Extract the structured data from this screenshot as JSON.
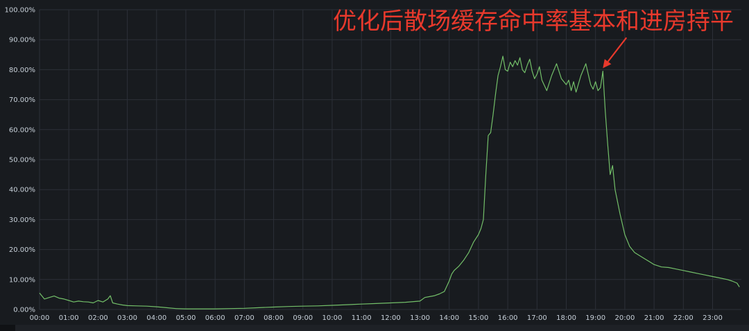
{
  "chart_data": {
    "type": "line",
    "title": "",
    "xlabel": "",
    "ylabel": "",
    "ylim": [
      0,
      100
    ],
    "y_ticks": [
      "0.00%",
      "10.00%",
      "20.00%",
      "30.00%",
      "40.00%",
      "50.00%",
      "60.00%",
      "70.00%",
      "80.00%",
      "90.00%",
      "100.00%"
    ],
    "x_ticks": [
      "00:00",
      "01:00",
      "02:00",
      "03:00",
      "04:00",
      "05:00",
      "06:00",
      "07:00",
      "08:00",
      "09:00",
      "10:00",
      "11:00",
      "12:00",
      "13:00",
      "14:00",
      "15:00",
      "16:00",
      "17:00",
      "18:00",
      "19:00",
      "20:00",
      "21:00",
      "22:00",
      "23:00"
    ],
    "xlim": [
      "00:00",
      "23:59"
    ],
    "grid": true,
    "annotation": {
      "text": "优化后散场缓存命中率基本和进房持平",
      "color": "#e8392c",
      "arrow_target": {
        "x": "19:15",
        "y": 80.5
      }
    },
    "series": [
      {
        "color": "#73bf69",
        "x": [
          "00:00",
          "00:10",
          "00:20",
          "00:30",
          "00:40",
          "00:50",
          "01:00",
          "01:10",
          "01:20",
          "01:30",
          "01:40",
          "01:50",
          "02:00",
          "02:10",
          "02:20",
          "02:25",
          "02:30",
          "02:40",
          "02:50",
          "03:00",
          "03:20",
          "03:40",
          "04:00",
          "04:20",
          "04:40",
          "05:00",
          "05:30",
          "06:00",
          "06:30",
          "07:00",
          "07:30",
          "08:00",
          "08:30",
          "09:00",
          "09:30",
          "10:00",
          "10:30",
          "11:00",
          "11:30",
          "12:00",
          "12:30",
          "13:00",
          "13:10",
          "13:20",
          "13:30",
          "13:40",
          "13:50",
          "14:00",
          "14:05",
          "14:10",
          "14:20",
          "14:30",
          "14:40",
          "14:50",
          "15:00",
          "15:05",
          "15:10",
          "15:15",
          "15:20",
          "15:25",
          "15:30",
          "15:35",
          "15:40",
          "15:45",
          "15:50",
          "15:55",
          "16:00",
          "16:05",
          "16:10",
          "16:15",
          "16:20",
          "16:25",
          "16:30",
          "16:35",
          "16:40",
          "16:45",
          "16:50",
          "16:55",
          "17:00",
          "17:05",
          "17:10",
          "17:20",
          "17:30",
          "17:40",
          "17:50",
          "18:00",
          "18:05",
          "18:10",
          "18:15",
          "18:20",
          "18:30",
          "18:40",
          "18:50",
          "18:55",
          "19:00",
          "19:05",
          "19:10",
          "19:15",
          "19:20",
          "19:25",
          "19:30",
          "19:35",
          "19:40",
          "19:45",
          "19:50",
          "20:00",
          "20:10",
          "20:20",
          "20:30",
          "20:40",
          "20:50",
          "21:00",
          "21:15",
          "21:30",
          "21:45",
          "22:00",
          "22:15",
          "22:30",
          "22:45",
          "23:00",
          "23:15",
          "23:30",
          "23:40",
          "23:50",
          "23:55"
        ],
        "y": [
          5.5,
          3.5,
          4.0,
          4.5,
          3.8,
          3.5,
          3.0,
          2.5,
          2.8,
          2.6,
          2.5,
          2.2,
          3.0,
          2.5,
          3.5,
          4.6,
          2.2,
          1.8,
          1.5,
          1.3,
          1.2,
          1.1,
          0.9,
          0.6,
          0.3,
          0.2,
          0.2,
          0.2,
          0.3,
          0.4,
          0.6,
          0.8,
          1.0,
          1.1,
          1.2,
          1.4,
          1.6,
          1.8,
          2.0,
          2.2,
          2.4,
          2.8,
          4.0,
          4.3,
          4.6,
          5.2,
          6.0,
          9.5,
          11.8,
          13.0,
          14.5,
          16.5,
          19.0,
          22.5,
          25.0,
          27.0,
          30.0,
          45.0,
          58.0,
          59.0,
          65.0,
          72.0,
          78.0,
          81.0,
          84.5,
          80.0,
          79.5,
          82.5,
          81.0,
          83.0,
          81.5,
          84.0,
          80.0,
          79.0,
          81.5,
          83.5,
          79.5,
          77.0,
          78.5,
          81.0,
          76.5,
          73.0,
          78.0,
          82.0,
          77.0,
          75.0,
          76.5,
          73.0,
          76.0,
          72.5,
          78.0,
          82.0,
          75.0,
          73.5,
          76.0,
          73.0,
          74.0,
          79.5,
          66.0,
          55.0,
          45.0,
          48.0,
          40.0,
          36.0,
          32.0,
          25.0,
          21.0,
          19.0,
          18.0,
          17.0,
          16.0,
          15.0,
          14.2,
          14.0,
          13.5,
          13.0,
          12.5,
          12.0,
          11.5,
          11.0,
          10.5,
          10.0,
          9.5,
          8.8,
          7.5
        ]
      }
    ]
  }
}
